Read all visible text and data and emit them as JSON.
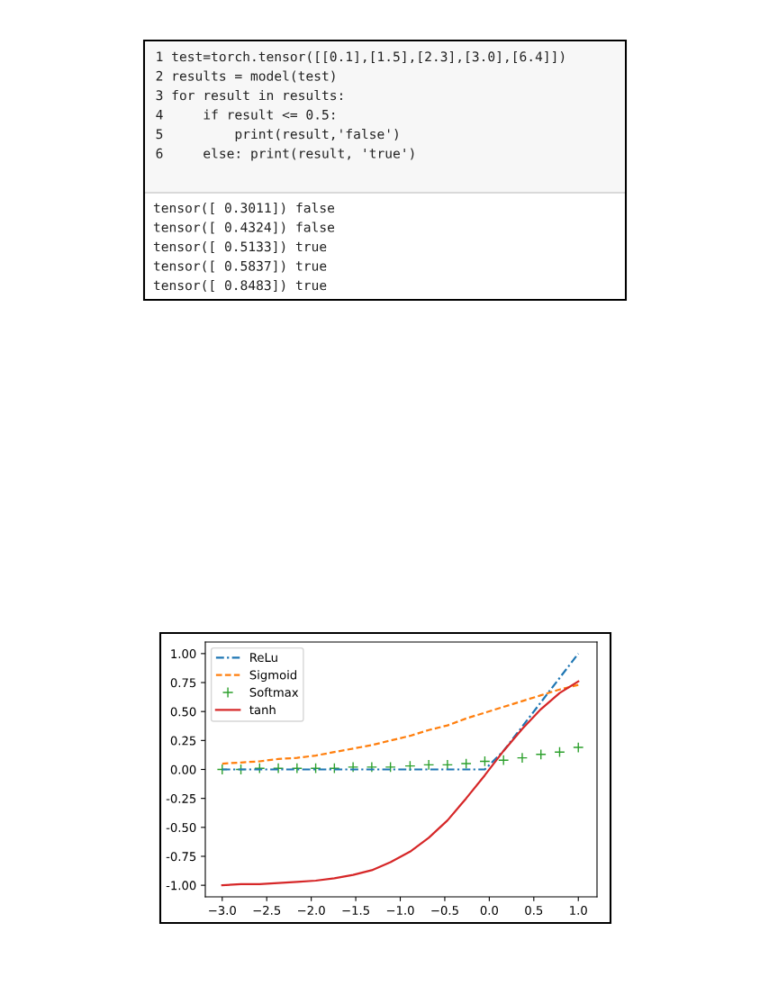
{
  "chart_data": [
    {
      "type": "other",
      "annotations": [
        "1 test=torch.tensor([[0.1],[1.5],[2.3],[3.0],[6.4]])",
        "2 results = model(test)",
        "3 for result in results:",
        "4     if result <= 0.5:",
        "5         print(result,'false')",
        "6     else: print(result, 'true')"
      ]
    },
    {
      "type": "other",
      "annotations": [
        "tensor([ 0.3011]) false",
        "tensor([ 0.4324]) false",
        "tensor([ 0.5133]) true",
        "tensor([ 0.5837]) true",
        "tensor([ 0.8483]) true"
      ]
    },
    {
      "type": "line",
      "x": [
        -3,
        -2.79,
        -2.58,
        -2.37,
        -2.16,
        -1.95,
        -1.74,
        -1.53,
        -1.32,
        -1.11,
        -0.89,
        -0.68,
        -0.47,
        -0.26,
        -0.05,
        0.16,
        0.37,
        0.58,
        0.79,
        1.0
      ],
      "series": [
        {
          "name": "ReLu",
          "color": "#1f77b4",
          "line_style": "dashdot",
          "marker": "none",
          "values": [
            0,
            0,
            0,
            0,
            0,
            0,
            0,
            0,
            0,
            0,
            0,
            0,
            0,
            0,
            0,
            0.16,
            0.37,
            0.58,
            0.79,
            1.0
          ]
        },
        {
          "name": "Sigmoid",
          "color": "#ff7f0e",
          "line_style": "dashed",
          "marker": "none",
          "values": [
            0.05,
            0.06,
            0.07,
            0.09,
            0.1,
            0.12,
            0.15,
            0.18,
            0.21,
            0.25,
            0.29,
            0.34,
            0.38,
            0.44,
            0.49,
            0.54,
            0.59,
            0.64,
            0.69,
            0.73
          ]
        },
        {
          "name": "Softmax",
          "type": "scatter",
          "color": "#2ca02c",
          "marker": "cross",
          "values": [
            0.0,
            0.0,
            0.01,
            0.01,
            0.01,
            0.01,
            0.01,
            0.02,
            0.02,
            0.02,
            0.03,
            0.04,
            0.04,
            0.05,
            0.07,
            0.08,
            0.1,
            0.13,
            0.15,
            0.19
          ]
        },
        {
          "name": "tanh",
          "color": "#d62728",
          "line_style": "solid",
          "marker": "none",
          "values": [
            -1.0,
            -0.99,
            -0.99,
            -0.98,
            -0.97,
            -0.96,
            -0.94,
            -0.91,
            -0.87,
            -0.8,
            -0.71,
            -0.59,
            -0.44,
            -0.25,
            -0.05,
            0.16,
            0.35,
            0.52,
            0.66,
            0.76
          ]
        }
      ],
      "xlim": [
        -3.19,
        1.21
      ],
      "xticks": [
        {
          "value": -3.0,
          "label": "−3.0"
        },
        {
          "value": -2.5,
          "label": "−2.5"
        },
        {
          "value": -2.0,
          "label": "−2.0"
        },
        {
          "value": -1.5,
          "label": "−1.5"
        },
        {
          "value": -1.0,
          "label": "−1.0"
        },
        {
          "value": -0.5,
          "label": "−0.5"
        },
        {
          "value": 0.0,
          "label": "0.0"
        },
        {
          "value": 0.5,
          "label": "0.5"
        },
        {
          "value": 1.0,
          "label": "1.0"
        }
      ],
      "ylim": [
        -1.1,
        1.1
      ],
      "yticks": [
        {
          "value": -1.0,
          "label": "-1.00"
        },
        {
          "value": -0.75,
          "label": "-0.75"
        },
        {
          "value": -0.5,
          "label": "-0.50"
        },
        {
          "value": -0.25,
          "label": "-0.25"
        },
        {
          "value": 0.0,
          "label": "0.00"
        },
        {
          "value": 0.25,
          "label": "0.25"
        },
        {
          "value": 0.5,
          "label": "0.50"
        },
        {
          "value": 0.75,
          "label": "0.75"
        },
        {
          "value": 1.0,
          "label": "1.00"
        }
      ],
      "legend": "top left",
      "grid": false
    }
  ]
}
